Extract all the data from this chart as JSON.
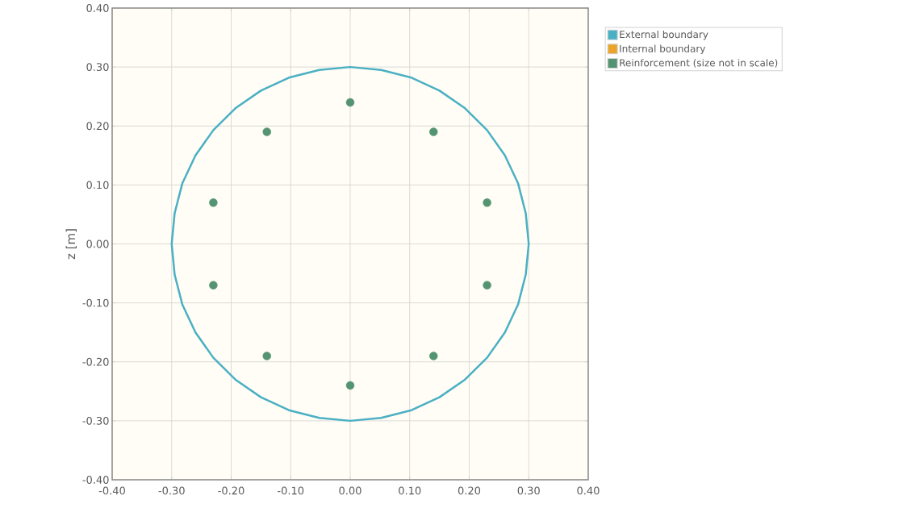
{
  "chart_data": {
    "type": "scatter",
    "ylabel": "z [m]",
    "xlim": [
      -0.4,
      0.4
    ],
    "xticks": [
      {
        "value": -0.4,
        "label": "-0.40"
      },
      {
        "value": -0.3,
        "label": "-0.30"
      },
      {
        "value": -0.2,
        "label": "-0.20"
      },
      {
        "value": -0.1,
        "label": "-0.10"
      },
      {
        "value": 0,
        "label": "0.00"
      },
      {
        "value": 0.1,
        "label": "0.10"
      },
      {
        "value": 0.2,
        "label": "0.20"
      },
      {
        "value": 0.3,
        "label": "0.30"
      },
      {
        "value": 0.4,
        "label": "0.40"
      }
    ],
    "ylim": [
      -0.4,
      0.4
    ],
    "yticks": [
      {
        "value": -0.4,
        "label": "-0.40"
      },
      {
        "value": -0.3,
        "label": "-0.30"
      },
      {
        "value": -0.2,
        "label": "-0.20"
      },
      {
        "value": -0.1,
        "label": "-0.10"
      },
      {
        "value": 0,
        "label": "0.00"
      },
      {
        "value": 0.1,
        "label": "0.10"
      },
      {
        "value": 0.2,
        "label": "0.20"
      },
      {
        "value": 0.3,
        "label": "0.30"
      },
      {
        "value": 0.4,
        "label": "0.40"
      }
    ],
    "grid": true,
    "legend": "top right",
    "series": [
      {
        "name": "External boundary",
        "type": "line",
        "marker": "none",
        "color": "#4ab0c4",
        "x": [
          -0.3,
          -0.295,
          -0.282,
          -0.26,
          -0.23,
          -0.193,
          -0.15,
          -0.103,
          -0.052,
          0,
          0.052,
          0.103,
          0.15,
          0.193,
          0.23,
          0.26,
          0.282,
          0.295,
          0.3,
          null,
          -0.3,
          -0.295,
          -0.282,
          -0.26,
          -0.23,
          -0.193,
          -0.15,
          -0.103,
          -0.052,
          0,
          0.052,
          0.103,
          0.15,
          0.193,
          0.23,
          0.26,
          0.282,
          0.295,
          0.3
        ],
        "values": [
          0,
          0.052,
          0.103,
          0.15,
          0.193,
          0.23,
          0.26,
          0.282,
          0.295,
          0.3,
          0.295,
          0.282,
          0.26,
          0.23,
          0.193,
          0.15,
          0.103,
          0.052,
          0,
          null,
          0,
          -0.052,
          -0.103,
          -0.15,
          -0.193,
          -0.23,
          -0.26,
          -0.282,
          -0.295,
          -0.3,
          -0.295,
          -0.282,
          -0.26,
          -0.23,
          -0.193,
          -0.15,
          -0.103,
          -0.052,
          0
        ]
      },
      {
        "name": "Internal boundary",
        "color": "#eba42a"
      },
      {
        "name": "Reinforcement (size not in scale)",
        "marker": "circle",
        "color": "#559472",
        "x": [
          0,
          0.14,
          0.23,
          0.23,
          0.14,
          0,
          -0.14,
          -0.23,
          -0.23,
          -0.14
        ],
        "values": [
          0.24,
          0.19,
          0.07,
          -0.07,
          -0.19,
          -0.24,
          -0.19,
          -0.07,
          0.07,
          0.19
        ]
      }
    ]
  }
}
